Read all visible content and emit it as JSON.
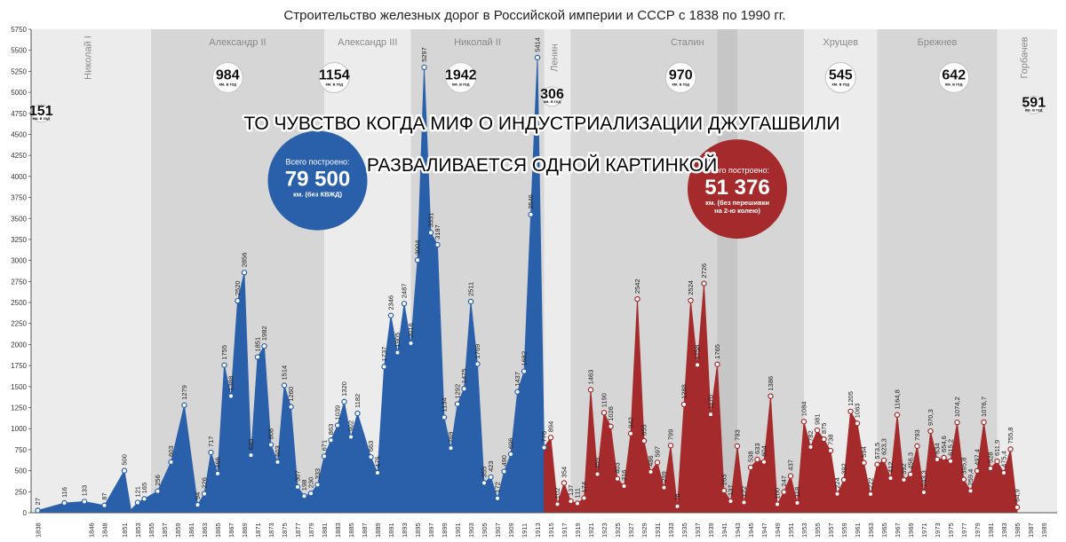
{
  "colors": {
    "empire": "#2A5FAA",
    "ussr": "#A42A2C",
    "band_dark": "#d6d6d6",
    "band_light": "#ececec"
  },
  "chart_data": {
    "type": "area",
    "title": "Строительство железных дорог в Российской империи и СССР с 1838 по 1990 гг.",
    "xlabel": "",
    "ylabel": "",
    "xlim": [
      1837,
      1991
    ],
    "ylim": [
      0,
      5750
    ],
    "y_ticks": [
      0,
      250,
      500,
      750,
      1000,
      1250,
      1500,
      1750,
      2000,
      2250,
      2500,
      2750,
      3000,
      3250,
      3500,
      3750,
      4000,
      4250,
      4500,
      4750,
      5000,
      5250,
      5500,
      5750
    ],
    "x_ticks": [
      1838,
      1846,
      1848,
      1851,
      1853,
      1855,
      1857,
      1859,
      1861,
      1863,
      1865,
      1867,
      1869,
      1871,
      1873,
      1875,
      1877,
      1879,
      1881,
      1883,
      1885,
      1887,
      1889,
      1891,
      1893,
      1895,
      1897,
      1899,
      1901,
      1903,
      1905,
      1907,
      1909,
      1911,
      1913,
      1915,
      1917,
      1919,
      1921,
      1923,
      1925,
      1927,
      1929,
      1931,
      1933,
      1935,
      1937,
      1939,
      1941,
      1943,
      1945,
      1947,
      1949,
      1951,
      1953,
      1955,
      1957,
      1959,
      1961,
      1963,
      1965,
      1967,
      1969,
      1971,
      1973,
      1975,
      1977,
      1979,
      1981,
      1983,
      1985,
      1987,
      1989
    ],
    "grid": false,
    "series": [
      {
        "name": "",
        "points": [
          [
            1838,
            27,
            "27"
          ],
          [
            1842,
            116,
            "116"
          ],
          [
            1845,
            133,
            "133"
          ],
          [
            1848,
            87,
            "87"
          ],
          [
            1851,
            500,
            "500"
          ],
          [
            1852,
            33,
            ""
          ],
          [
            1853,
            121,
            "121"
          ],
          [
            1854,
            165,
            "165"
          ],
          [
            1856,
            256,
            "256"
          ],
          [
            1858,
            603,
            "603"
          ],
          [
            1860,
            1279,
            "1279"
          ],
          [
            1862,
            94,
            "94"
          ],
          [
            1863,
            226,
            "226"
          ],
          [
            1864,
            717,
            "717"
          ],
          [
            1865,
            466,
            "466"
          ],
          [
            1866,
            1755,
            "1755"
          ],
          [
            1867,
            1388,
            "1388"
          ],
          [
            1868,
            2520,
            "2520"
          ],
          [
            1869,
            2856,
            "2856"
          ],
          [
            1870,
            685,
            "685"
          ],
          [
            1871,
            1851,
            "1851"
          ],
          [
            1872,
            1982,
            "1982"
          ],
          [
            1873,
            808,
            "808"
          ],
          [
            1874,
            603,
            "603"
          ],
          [
            1875,
            1514,
            "1514"
          ],
          [
            1876,
            1260,
            "1260"
          ],
          [
            1877,
            307,
            "307"
          ],
          [
            1878,
            198,
            "198"
          ],
          [
            1879,
            230,
            "230"
          ],
          [
            1880,
            333,
            "333"
          ],
          [
            1881,
            671,
            "671"
          ],
          [
            1882,
            863,
            "863"
          ],
          [
            1883,
            1039,
            "1039"
          ],
          [
            1884,
            1320,
            "1320"
          ],
          [
            1885,
            902,
            "902"
          ],
          [
            1886,
            1182,
            "1182"
          ],
          [
            1888,
            663,
            "663"
          ],
          [
            1889,
            475,
            "475"
          ],
          [
            1890,
            1737,
            "1737"
          ],
          [
            1891,
            2346,
            "2346"
          ],
          [
            1892,
            1905,
            "1905"
          ],
          [
            1893,
            2487,
            "2487"
          ],
          [
            1894,
            2016,
            "2016"
          ],
          [
            1895,
            3004,
            "3004"
          ],
          [
            1896,
            5297,
            "5297"
          ],
          [
            1897,
            3331,
            "3331"
          ],
          [
            1898,
            3187,
            "3187"
          ],
          [
            1899,
            1134,
            "1134"
          ],
          [
            1900,
            769,
            "769"
          ],
          [
            1901,
            1292,
            "1292"
          ],
          [
            1902,
            1475,
            "1475"
          ],
          [
            1903,
            2511,
            "2511"
          ],
          [
            1904,
            1769,
            "1769"
          ],
          [
            1905,
            355,
            "355"
          ],
          [
            1906,
            423,
            "423"
          ],
          [
            1907,
            172,
            "172"
          ],
          [
            1908,
            490,
            "490"
          ],
          [
            1909,
            696,
            "696"
          ],
          [
            1910,
            1437,
            "1437"
          ],
          [
            1911,
            1682,
            "1682"
          ],
          [
            1912,
            3546,
            "3546"
          ],
          [
            1913,
            5414,
            "5414"
          ],
          [
            1914,
            776,
            "776"
          ]
        ]
      },
      {
        "name": "",
        "points": [
          [
            1914,
            776,
            ""
          ],
          [
            1915,
            894,
            "894"
          ],
          [
            1916,
            102,
            "102"
          ],
          [
            1917,
            354,
            "354"
          ],
          [
            1918,
            137,
            "137"
          ],
          [
            1919,
            111,
            "111"
          ],
          [
            1920,
            174,
            "174"
          ],
          [
            1921,
            1463,
            "1463"
          ],
          [
            1922,
            459,
            "459"
          ],
          [
            1923,
            1190,
            "1190"
          ],
          [
            1924,
            1026,
            "1026"
          ],
          [
            1925,
            403,
            "403"
          ],
          [
            1926,
            316,
            "316"
          ],
          [
            1927,
            942,
            "942"
          ],
          [
            1928,
            2542,
            "2542"
          ],
          [
            1929,
            855,
            "855"
          ],
          [
            1930,
            486,
            "486"
          ],
          [
            1931,
            597,
            "597"
          ],
          [
            1932,
            299,
            "299"
          ],
          [
            1933,
            799,
            "799"
          ],
          [
            1934,
            76,
            "76"
          ],
          [
            1935,
            1288,
            "1288"
          ],
          [
            1936,
            2524,
            "2524"
          ],
          [
            1937,
            1758,
            "1758"
          ],
          [
            1938,
            2726,
            "2726"
          ],
          [
            1939,
            1170,
            "1170"
          ],
          [
            1940,
            1765,
            "1765"
          ],
          [
            1941,
            263,
            "263"
          ],
          [
            1942,
            137,
            "137"
          ],
          [
            1943,
            793,
            "793"
          ],
          [
            1944,
            122,
            "122"
          ],
          [
            1945,
            538,
            "538"
          ],
          [
            1946,
            633,
            "633"
          ],
          [
            1947,
            604,
            "604"
          ],
          [
            1948,
            1386,
            "1386"
          ],
          [
            1949,
            100,
            "100"
          ],
          [
            1950,
            247,
            "247"
          ],
          [
            1951,
            437,
            "437"
          ],
          [
            1952,
            118,
            "118"
          ],
          [
            1953,
            1084,
            "1084"
          ],
          [
            1954,
            782,
            "782"
          ],
          [
            1955,
            981,
            "981"
          ],
          [
            1956,
            875,
            "875"
          ],
          [
            1957,
            738,
            "738"
          ],
          [
            1958,
            224,
            "224"
          ],
          [
            1959,
            392,
            "392"
          ],
          [
            1960,
            1205,
            "1205"
          ],
          [
            1961,
            1063,
            "1063"
          ],
          [
            1962,
            594,
            "594"
          ],
          [
            1963,
            222,
            "222"
          ],
          [
            1964,
            573.5,
            "573,5"
          ],
          [
            1965,
            623.3,
            "623,3"
          ],
          [
            1966,
            412,
            "412"
          ],
          [
            1967,
            1164.8,
            "1164,8"
          ],
          [
            1968,
            392,
            "392"
          ],
          [
            1969,
            456.3,
            "456,3"
          ],
          [
            1970,
            793,
            "793"
          ],
          [
            1971,
            243.3,
            "243,3"
          ],
          [
            1972,
            970.3,
            "970,3"
          ],
          [
            1973,
            634,
            "634"
          ],
          [
            1974,
            654.6,
            "654,6"
          ],
          [
            1975,
            615.2,
            "615,2"
          ],
          [
            1976,
            1074.2,
            "1074,2"
          ],
          [
            1977,
            395.8,
            "395,8"
          ],
          [
            1978,
            259.4,
            "259,4"
          ],
          [
            1979,
            497.4,
            "497,4"
          ],
          [
            1980,
            1076.7,
            "1076,7"
          ],
          [
            1981,
            528,
            "528"
          ],
          [
            1982,
            611.9,
            "611,9"
          ],
          [
            1983,
            475.4,
            "475,4"
          ],
          [
            1984,
            755.8,
            "755,8"
          ],
          [
            1985,
            64.9,
            "64,9"
          ]
        ]
      }
    ],
    "eras": [
      {
        "name": "Николай I",
        "from": 1837,
        "to": 1855,
        "shade": "band_light",
        "vertical": true
      },
      {
        "name": "Александр II",
        "from": 1855,
        "to": 1881,
        "shade": "band_dark",
        "vertical": false
      },
      {
        "name": "Александр III",
        "from": 1881,
        "to": 1894,
        "shade": "band_light",
        "vertical": false
      },
      {
        "name": "Николай II",
        "from": 1894,
        "to": 1914,
        "shade": "band_dark",
        "vertical": false
      },
      {
        "name": "Ленин",
        "from": 1914,
        "to": 1918,
        "shade": "band_light",
        "vertical": true
      },
      {
        "name": "Сталин",
        "from": 1918,
        "to": 1953,
        "shade": "band_dark",
        "vertical": false
      },
      {
        "name": "Хрущев",
        "from": 1953,
        "to": 1964,
        "shade": "band_light",
        "vertical": false
      },
      {
        "name": "Брежнев",
        "from": 1964,
        "to": 1982,
        "shade": "band_dark",
        "vertical": false
      },
      {
        "name": "Горбачев",
        "from": 1982,
        "to": 1991,
        "shade": "band_light",
        "vertical": true
      }
    ],
    "war_band": {
      "from": 1940,
      "to": 1943
    },
    "badges": [
      {
        "value": "151",
        "unit": "км. в год",
        "x": 1838.5,
        "y": 4750,
        "r": 10
      },
      {
        "value": "984",
        "unit": "км. в год",
        "x": 1866.5,
        "y": 5175,
        "r": 17
      },
      {
        "value": "1154",
        "unit": "км. в год",
        "x": 1882.5,
        "y": 5175,
        "r": 17
      },
      {
        "value": "1942",
        "unit": "км. в год",
        "x": 1901.5,
        "y": 5175,
        "r": 17
      },
      {
        "value": "306",
        "unit": "км. в год",
        "x": 1915.2,
        "y": 4950,
        "r": 11
      },
      {
        "value": "970",
        "unit": "км. в год",
        "x": 1934.5,
        "y": 5175,
        "r": 17
      },
      {
        "value": "545",
        "unit": "км. в год",
        "x": 1958.5,
        "y": 5175,
        "r": 17
      },
      {
        "value": "642",
        "unit": "км. в год",
        "x": 1975.5,
        "y": 5175,
        "r": 17
      },
      {
        "value": "591",
        "unit": "км. в год",
        "x": 1987.5,
        "y": 4850,
        "r": 10
      }
    ],
    "totals": [
      {
        "label": "Всего построено:",
        "value": "79 500",
        "note1": "км. (без КВЖД)",
        "note2": "",
        "x": 1880,
        "y": 3950,
        "r": 56,
        "color": "empire"
      },
      {
        "label": "Всего построено:",
        "value": "51 376",
        "note1": "км. (без перешивки",
        "note2": "на 2-ю колею)",
        "x": 1943,
        "y": 3850,
        "r": 56,
        "color": "ussr"
      }
    ],
    "caption": [
      "ТО ЧУВСТВО КОГДА МИФ О ИНДУСТРИАЛИЗАЦИИ ДЖУГАШВИЛИ",
      "РАЗВАЛИВАЕТСЯ ОДНОЙ КАРТИНКОЙ"
    ]
  }
}
